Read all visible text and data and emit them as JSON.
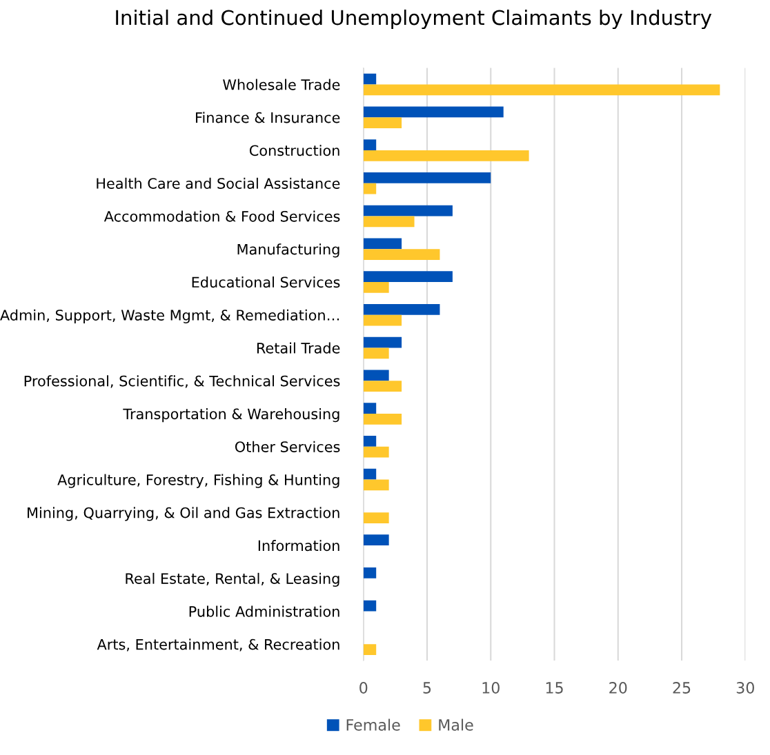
{
  "chart_data": {
    "type": "bar",
    "orientation": "horizontal",
    "title": "Initial and Continued Unemployment Claimants by Industry",
    "categories": [
      "Wholesale Trade",
      "Finance & Insurance",
      "Construction",
      "Health Care and Social Assistance",
      "Accommodation & Food Services",
      "Manufacturing",
      "Educational Services",
      "Admin, Support, Waste Mgmt, & Remediation…",
      "Retail Trade",
      "Professional, Scientific, & Technical Services",
      "Transportation & Warehousing",
      "Other Services",
      "Agriculture, Forestry, Fishing & Hunting",
      "Mining, Quarrying, & Oil and Gas Extraction",
      "Information",
      "Real Estate, Rental, & Leasing",
      "Public Administration",
      "Arts, Entertainment, & Recreation"
    ],
    "series": [
      {
        "name": "Female",
        "color": "#0052b8",
        "values": [
          1,
          11,
          1,
          10,
          7,
          3,
          7,
          6,
          3,
          2,
          1,
          1,
          1,
          0,
          2,
          1,
          1,
          0
        ]
      },
      {
        "name": "Male",
        "color": "#ffc72c",
        "values": [
          28,
          3,
          13,
          1,
          4,
          6,
          2,
          3,
          2,
          3,
          3,
          2,
          2,
          2,
          0,
          0,
          0,
          1
        ]
      }
    ],
    "xlim": [
      0,
      30
    ],
    "xticks": [
      0,
      5,
      10,
      15,
      20,
      25,
      30
    ],
    "grid": "x",
    "legend": "bottom"
  }
}
